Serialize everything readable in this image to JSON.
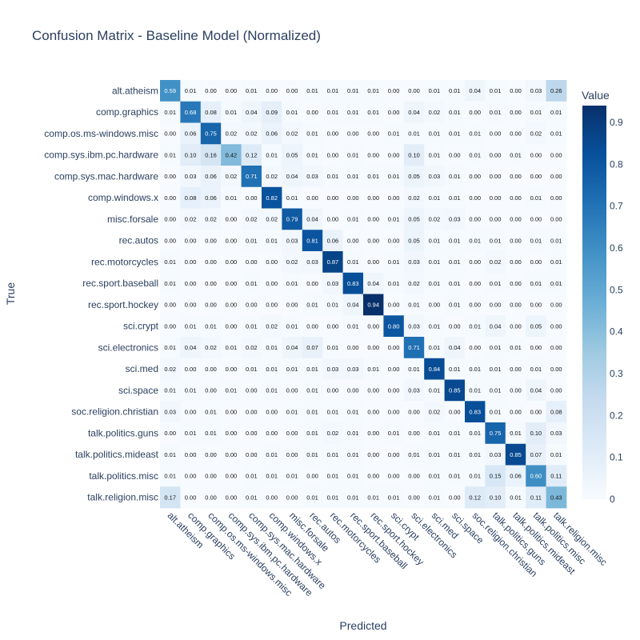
{
  "chart_data": {
    "type": "heatmap",
    "title": "Confusion Matrix - Baseline Model (Normalized)",
    "xlabel": "Predicted",
    "ylabel": "True",
    "colorbar_title": "Value",
    "colorbar_ticks": [
      "0",
      "0.1",
      "0.2",
      "0.3",
      "0.4",
      "0.5",
      "0.6",
      "0.7",
      "0.8",
      "0.9"
    ],
    "zrange": [
      0,
      0.94
    ],
    "colorscale": "Blues",
    "categories": [
      "alt.atheism",
      "comp.graphics",
      "comp.os.ms-windows.misc",
      "comp.sys.ibm.pc.hardware",
      "comp.sys.mac.hardware",
      "comp.windows.x",
      "misc.forsale",
      "rec.autos",
      "rec.motorcycles",
      "rec.sport.baseball",
      "rec.sport.hockey",
      "sci.crypt",
      "sci.electronics",
      "sci.med",
      "sci.space",
      "soc.religion.christian",
      "talk.politics.guns",
      "talk.politics.mideast",
      "talk.politics.misc",
      "talk.religion.misc"
    ],
    "values": [
      [
        "0.59",
        "0.01",
        "0.00",
        "0.00",
        "0.01",
        "0.00",
        "0.00",
        "0.01",
        "0.01",
        "0.01",
        "0.01",
        "0.00",
        "0.00",
        "0.01",
        "0.01",
        "0.04",
        "0.01",
        "0.00",
        "0.03",
        "0.26"
      ],
      [
        "0.01",
        "0.68",
        "0.08",
        "0.01",
        "0.04",
        "0.09",
        "0.01",
        "0.00",
        "0.01",
        "0.01",
        "0.01",
        "0.00",
        "0.04",
        "0.02",
        "0.01",
        "0.00",
        "0.01",
        "0.00",
        "0.01",
        "0.01"
      ],
      [
        "0.00",
        "0.06",
        "0.75",
        "0.02",
        "0.02",
        "0.06",
        "0.02",
        "0.01",
        "0.00",
        "0.00",
        "0.00",
        "0.01",
        "0.01",
        "0.01",
        "0.01",
        "0.01",
        "0.00",
        "0.00",
        "0.02",
        "0.01"
      ],
      [
        "0.01",
        "0.10",
        "0.16",
        "0.42",
        "0.12",
        "0.01",
        "0.05",
        "0.01",
        "0.00",
        "0.01",
        "0.00",
        "0.00",
        "0.10",
        "0.01",
        "0.00",
        "0.01",
        "0.00",
        "0.01",
        "0.00",
        "0.00"
      ],
      [
        "0.00",
        "0.03",
        "0.06",
        "0.02",
        "0.71",
        "0.02",
        "0.04",
        "0.03",
        "0.01",
        "0.01",
        "0.01",
        "0.01",
        "0.05",
        "0.03",
        "0.01",
        "0.00",
        "0.00",
        "0.00",
        "0.00",
        "0.00"
      ],
      [
        "0.00",
        "0.08",
        "0.06",
        "0.01",
        "0.00",
        "0.82",
        "0.01",
        "0.00",
        "0.00",
        "0.00",
        "0.00",
        "0.00",
        "0.02",
        "0.01",
        "0.01",
        "0.00",
        "0.00",
        "0.00",
        "0.01",
        "0.00"
      ],
      [
        "0.00",
        "0.02",
        "0.02",
        "0.00",
        "0.02",
        "0.02",
        "0.79",
        "0.04",
        "0.00",
        "0.01",
        "0.00",
        "0.01",
        "0.05",
        "0.02",
        "0.03",
        "0.00",
        "0.00",
        "0.00",
        "0.00",
        "0.00"
      ],
      [
        "0.00",
        "0.00",
        "0.00",
        "0.00",
        "0.01",
        "0.01",
        "0.03",
        "0.81",
        "0.06",
        "0.00",
        "0.00",
        "0.00",
        "0.05",
        "0.01",
        "0.01",
        "0.01",
        "0.01",
        "0.00",
        "0.01",
        "0.01"
      ],
      [
        "0.01",
        "0.00",
        "0.00",
        "0.00",
        "0.00",
        "0.00",
        "0.02",
        "0.03",
        "0.87",
        "0.01",
        "0.00",
        "0.01",
        "0.03",
        "0.01",
        "0.01",
        "0.00",
        "0.02",
        "0.00",
        "0.00",
        "0.01"
      ],
      [
        "0.01",
        "0.00",
        "0.00",
        "0.00",
        "0.01",
        "0.00",
        "0.01",
        "0.00",
        "0.03",
        "0.83",
        "0.04",
        "0.01",
        "0.02",
        "0.01",
        "0.01",
        "0.00",
        "0.01",
        "0.00",
        "0.01",
        "0.01"
      ],
      [
        "0.00",
        "0.00",
        "0.00",
        "0.00",
        "0.00",
        "0.00",
        "0.00",
        "0.01",
        "0.01",
        "0.04",
        "0.94",
        "0.00",
        "0.01",
        "0.00",
        "0.01",
        "0.00",
        "0.00",
        "0.00",
        "0.00",
        "0.00"
      ],
      [
        "0.00",
        "0.01",
        "0.01",
        "0.00",
        "0.01",
        "0.02",
        "0.01",
        "0.00",
        "0.00",
        "0.01",
        "0.00",
        "0.80",
        "0.03",
        "0.01",
        "0.00",
        "0.01",
        "0.04",
        "0.00",
        "0.05",
        "0.00"
      ],
      [
        "0.01",
        "0.04",
        "0.02",
        "0.01",
        "0.02",
        "0.01",
        "0.04",
        "0.07",
        "0.01",
        "0.00",
        "0.00",
        "0.00",
        "0.71",
        "0.01",
        "0.04",
        "0.00",
        "0.01",
        "0.01",
        "0.00",
        "0.00"
      ],
      [
        "0.02",
        "0.00",
        "0.00",
        "0.00",
        "0.01",
        "0.01",
        "0.01",
        "0.01",
        "0.03",
        "0.03",
        "0.01",
        "0.00",
        "0.01",
        "0.84",
        "0.01",
        "0.01",
        "0.01",
        "0.00",
        "0.01",
        "0.00"
      ],
      [
        "0.01",
        "0.01",
        "0.00",
        "0.01",
        "0.00",
        "0.01",
        "0.00",
        "0.01",
        "0.00",
        "0.00",
        "0.00",
        "0.00",
        "0.03",
        "0.01",
        "0.85",
        "0.01",
        "0.01",
        "0.00",
        "0.04",
        "0.00"
      ],
      [
        "0.03",
        "0.00",
        "0.01",
        "0.00",
        "0.00",
        "0.00",
        "0.01",
        "0.01",
        "0.01",
        "0.01",
        "0.00",
        "0.00",
        "0.00",
        "0.02",
        "0.00",
        "0.83",
        "0.01",
        "0.00",
        "0.00",
        "0.08"
      ],
      [
        "0.00",
        "0.01",
        "0.01",
        "0.00",
        "0.00",
        "0.00",
        "0.00",
        "0.01",
        "0.02",
        "0.01",
        "0.00",
        "0.01",
        "0.00",
        "0.01",
        "0.01",
        "0.01",
        "0.75",
        "0.01",
        "0.10",
        "0.03"
      ],
      [
        "0.01",
        "0.00",
        "0.00",
        "0.00",
        "0.00",
        "0.01",
        "0.00",
        "0.01",
        "0.01",
        "0.01",
        "0.00",
        "0.00",
        "0.01",
        "0.01",
        "0.01",
        "0.01",
        "0.03",
        "0.85",
        "0.07",
        "0.01"
      ],
      [
        "0.01",
        "0.00",
        "0.00",
        "0.00",
        "0.01",
        "0.01",
        "0.01",
        "0.00",
        "0.01",
        "0.01",
        "0.00",
        "0.00",
        "0.00",
        "0.01",
        "0.01",
        "0.01",
        "0.15",
        "0.06",
        "0.60",
        "0.11"
      ],
      [
        "0.17",
        "0.00",
        "0.00",
        "0.00",
        "0.01",
        "0.00",
        "0.00",
        "0.01",
        "0.01",
        "0.01",
        "0.01",
        "0.01",
        "0.00",
        "0.01",
        "0.00",
        "0.12",
        "0.10",
        "0.01",
        "0.11",
        "0.43"
      ]
    ]
  }
}
